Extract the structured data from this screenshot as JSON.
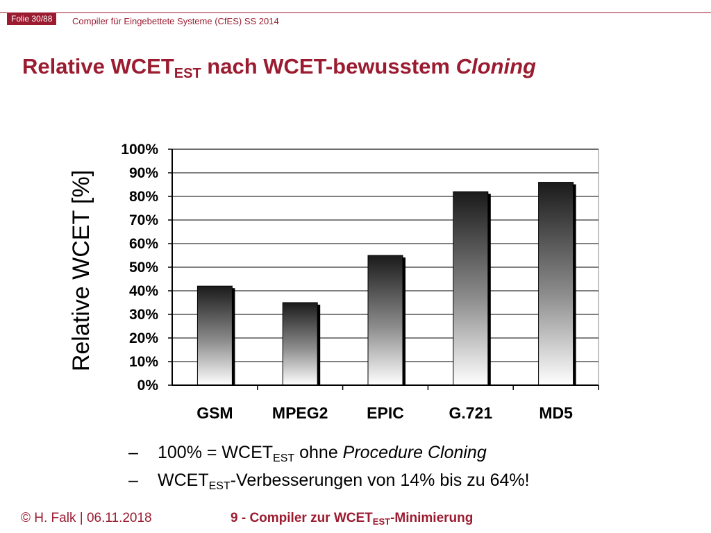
{
  "header": {
    "slide_label": "Folie 30/88",
    "course": "Compiler für Eingebettete Systeme (CfES) SS 2014"
  },
  "title": {
    "main": "Relative WCET",
    "sub": "EST",
    "rest": " nach WCET-bewusstem ",
    "italic": "Cloning"
  },
  "chart_data": {
    "type": "bar",
    "categories": [
      "GSM",
      "MPEG2",
      "EPIC",
      "G.721",
      "MD5"
    ],
    "values": [
      42,
      35,
      55,
      82,
      86
    ],
    "ylabel": "Relative WCET [%]",
    "ylim": [
      0,
      100
    ],
    "yticks": [
      "0%",
      "10%",
      "20%",
      "30%",
      "40%",
      "50%",
      "60%",
      "70%",
      "80%",
      "90%",
      "100%"
    ],
    "grid": true
  },
  "bullets": [
    {
      "dash": "–",
      "a": "100% = WCET",
      "sub": "EST",
      "b": " ohne ",
      "i": "Procedure Cloning"
    },
    {
      "dash": "–",
      "a": "WCET",
      "sub": "EST",
      "b": "-Verbesserungen von 14% bis zu 64%!"
    }
  ],
  "footer": {
    "left": "© H. Falk | 06.11.2018",
    "center_a": "9 - Compiler zur WCET",
    "center_sub": "EST",
    "center_b": "-Minimierung"
  },
  "colors": {
    "accent": "#9b1b30"
  }
}
